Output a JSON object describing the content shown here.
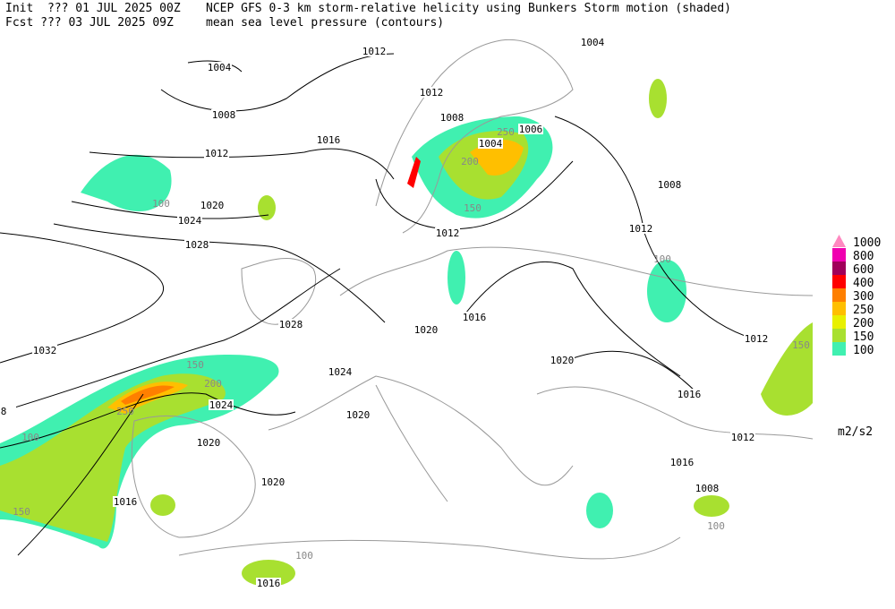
{
  "header": {
    "init": "Init  ??? 01 JUL 2025 00Z",
    "fcst": "Fcst ??? 03 JUL 2025 09Z",
    "title": "NCEP GFS 0-3 km storm-relative helicity using Bunkers Storm motion (shaded)",
    "subtitle": "mean sea level pressure (contours)"
  },
  "legend": {
    "levels": [
      1000,
      800,
      600,
      400,
      300,
      250,
      200,
      150,
      100
    ],
    "colors": [
      "#ff88c0",
      "#f000b0",
      "#a0005a",
      "#ff0000",
      "#ff7f00",
      "#ffbf00",
      "#e8f000",
      "#a8e030",
      "#40f0b0"
    ],
    "unit": "m2/s2"
  },
  "contour_labels": [
    "1004",
    "1012",
    "1008",
    "1012",
    "1016",
    "1020",
    "1024",
    "1028",
    "1032",
    "1028",
    "1024",
    "1020",
    "1024",
    "1020",
    "1020",
    "1016",
    "1016",
    "1012",
    "1008",
    "1004",
    "1006",
    "1012",
    "1012",
    "1008",
    "1004",
    "1020",
    "1016",
    "1020",
    "1016",
    "1012",
    "1012",
    "1016",
    "1008",
    "8"
  ],
  "helicity_labels": [
    "150",
    "200",
    "250",
    "100",
    "150",
    "100",
    "100",
    "150",
    "100",
    "100",
    "200",
    "250",
    "150"
  ]
}
